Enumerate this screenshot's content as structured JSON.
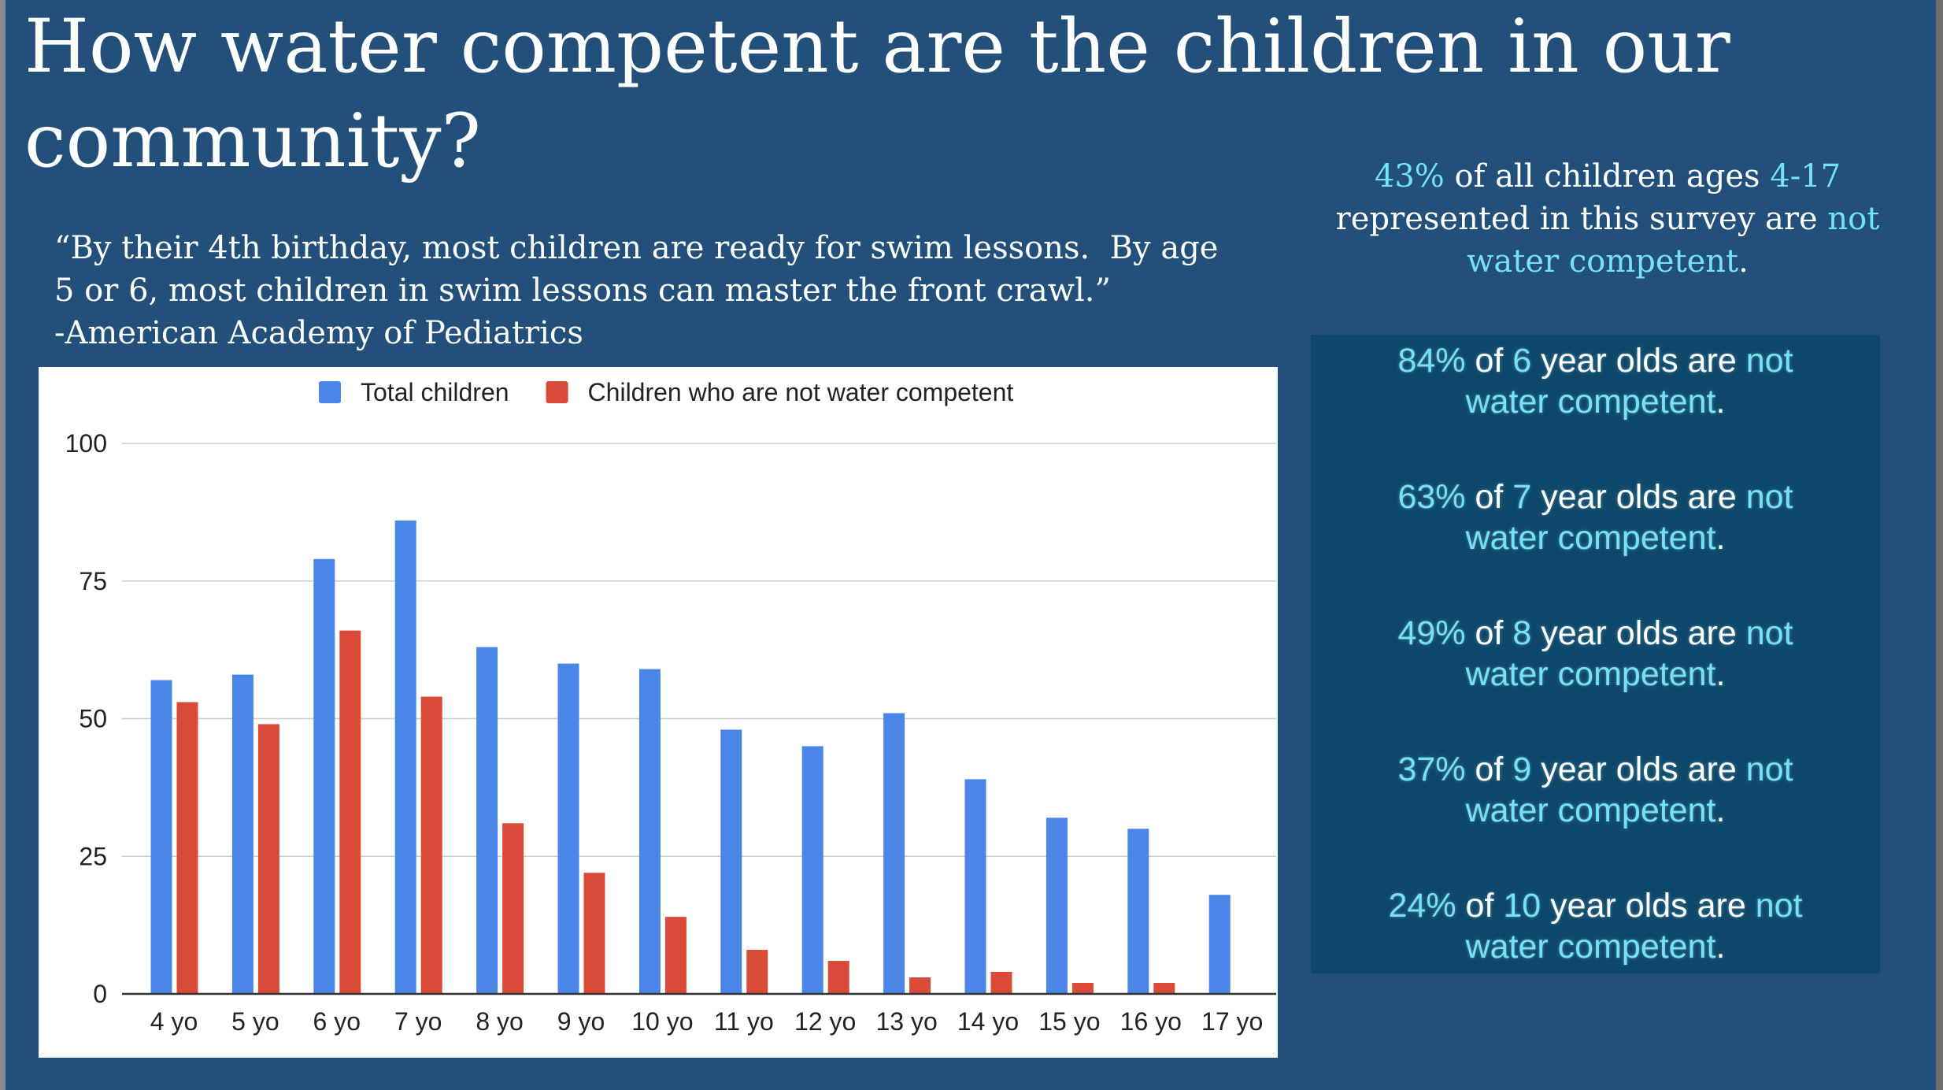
{
  "slide": {
    "title": "How water competent are the children in our community?",
    "quote_lines": [
      "“By their 4th birthday, most children are ready for swim lessons.  By age",
      "5 or 6, most children in swim lessons can master the front crawl.”"
    ],
    "attribution": "-American Academy of Pediatrics"
  },
  "summary": {
    "pct": "43%",
    "text_a": "of all children ages",
    "age_range": "4-17",
    "text_b": "represented in this survey are",
    "not": "not",
    "water_competent": "water competent",
    "end": "."
  },
  "stats": {
    "of": "of",
    "year_olds_are": "year olds are",
    "not": "not",
    "water_competent": "water competent",
    "end": ".",
    "items": [
      {
        "pct": "84%",
        "age": "6"
      },
      {
        "pct": "63%",
        "age": "7"
      },
      {
        "pct": "49%",
        "age": "8"
      },
      {
        "pct": "37%",
        "age": "9"
      },
      {
        "pct": "24%",
        "age": "10"
      }
    ]
  },
  "colors": {
    "background": "#23507a",
    "panel": "#0e486a",
    "accent": "#74e2f3",
    "text": "#ffffff"
  },
  "chart_data": {
    "type": "bar",
    "categories": [
      "4 yo",
      "5 yo",
      "6 yo",
      "7 yo",
      "8 yo",
      "9 yo",
      "10 yo",
      "11 yo",
      "12 yo",
      "13 yo",
      "14 yo",
      "15 yo",
      "16 yo",
      "17 yo"
    ],
    "series": [
      {
        "name": "Total children",
        "color": "#4a86e8",
        "values": [
          57,
          58,
          79,
          86,
          63,
          60,
          59,
          48,
          45,
          51,
          39,
          32,
          30,
          18
        ]
      },
      {
        "name": "Children who are not water competent",
        "color": "#d94a38",
        "values": [
          53,
          49,
          66,
          54,
          31,
          22,
          14,
          8,
          6,
          3,
          4,
          2,
          2,
          0
        ]
      }
    ],
    "ylim": [
      0,
      100
    ],
    "yticks": [
      0,
      25,
      50,
      75,
      100
    ],
    "grid": true,
    "legend": "top"
  }
}
